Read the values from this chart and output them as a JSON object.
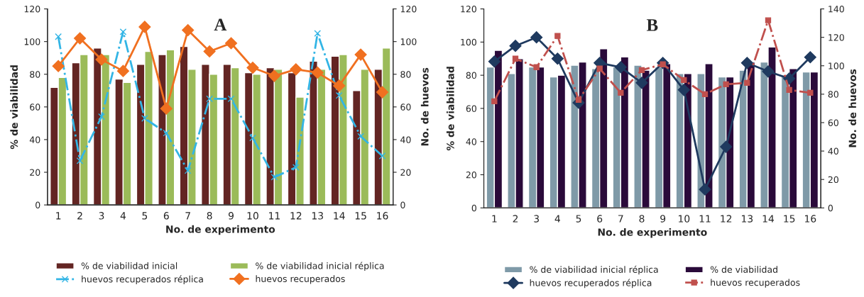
{
  "chart_data": [
    {
      "type": "bar",
      "title": "A",
      "xlabel": "No. de experimento",
      "ylabel": "% de viabilidad",
      "y2label": "No. de huevos",
      "categories": [
        "1",
        "2",
        "3",
        "4",
        "5",
        "6",
        "7",
        "8",
        "9",
        "10",
        "11",
        "12",
        "13",
        "14",
        "15",
        "16"
      ],
      "ylim": [
        0,
        120
      ],
      "yticks": [
        0,
        20,
        40,
        60,
        80,
        100,
        120
      ],
      "y2lim": [
        0,
        120
      ],
      "y2ticks": [
        0,
        20,
        40,
        60,
        80,
        100,
        120
      ],
      "grid": false,
      "legend": "bottom",
      "series": [
        {
          "name": "% de viabilidad inicial",
          "color": "#632523",
          "values": [
            72,
            87,
            96,
            77,
            86,
            92,
            97,
            86,
            86,
            81,
            84,
            81,
            88,
            91,
            70,
            83
          ]
        },
        {
          "name": "% de viabilidad inicial réplica",
          "color": "#9bbb59",
          "values": [
            78,
            92,
            92,
            75,
            94,
            95,
            83,
            80,
            84,
            80,
            83,
            66,
            83,
            92,
            83,
            96
          ]
        },
        {
          "name": "huevos recuperados réplica",
          "type": "line",
          "axis": "y2",
          "color": "#33b5e5",
          "marker": "cross",
          "line_style": "dashdot",
          "values": [
            103,
            27,
            54,
            106,
            53,
            44,
            21,
            65,
            65,
            41,
            17,
            23,
            105,
            67,
            42,
            30
          ]
        },
        {
          "name": "huevos recuperados",
          "type": "line",
          "axis": "y2",
          "color": "#f07020",
          "marker": "diamond",
          "line_style": "solid",
          "values": [
            85,
            102,
            89,
            82,
            109,
            59,
            107,
            94,
            99,
            84,
            79,
            83,
            81,
            73,
            92,
            69
          ]
        }
      ]
    },
    {
      "type": "bar",
      "title": "B",
      "xlabel": "No. de experimento",
      "ylabel": "% de viabilidad",
      "y2label": "No. de huevos",
      "categories": [
        "1",
        "2",
        "3",
        "4",
        "5",
        "6",
        "7",
        "8",
        "9",
        "10",
        "11",
        "12",
        "13",
        "14",
        "15",
        "16"
      ],
      "ylim": [
        0,
        120
      ],
      "yticks": [
        0,
        20,
        40,
        60,
        80,
        100,
        120
      ],
      "y2lim": [
        0,
        140
      ],
      "y2ticks": [
        0,
        20,
        40,
        60,
        80,
        100,
        120,
        140
      ],
      "grid": false,
      "legend": "bottom",
      "series": [
        {
          "name": "% de viabilidad inicial réplica",
          "color": "#7f9aa8",
          "values": [
            85,
            81,
            85,
            79,
            86,
            84,
            85,
            86,
            85,
            81,
            81,
            79,
            83,
            88,
            80,
            82
          ]
        },
        {
          "name": "% de viabilidad",
          "color": "#2a0a3a",
          "values": [
            95,
            90,
            85,
            80,
            88,
            96,
            91,
            83,
            87,
            81,
            87,
            79,
            88,
            97,
            84,
            82
          ]
        },
        {
          "name": "huevos recuperados réplica",
          "type": "line",
          "axis": "y2",
          "color": "#1f3a5f",
          "marker": "diamond",
          "line_style": "solid",
          "values": [
            103,
            114,
            120,
            105,
            74,
            102,
            99,
            88,
            102,
            83,
            13,
            43,
            102,
            96,
            91,
            106
          ]
        },
        {
          "name": "huevos recuperados",
          "type": "line",
          "axis": "y2",
          "color": "#c0504d",
          "marker": "square",
          "line_style": "dashdot",
          "values": [
            75,
            105,
            99,
            121,
            76,
            98,
            81,
            97,
            101,
            90,
            80,
            87,
            88,
            132,
            83,
            81
          ]
        }
      ]
    }
  ]
}
